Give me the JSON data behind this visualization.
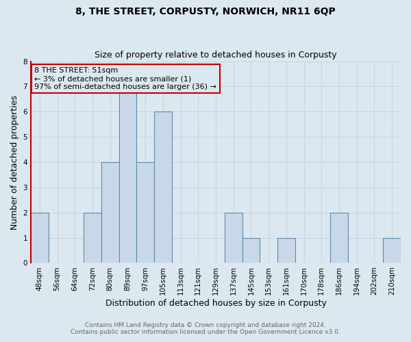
{
  "title": "8, THE STREET, CORPUSTY, NORWICH, NR11 6QP",
  "subtitle": "Size of property relative to detached houses in Corpusty",
  "xlabel": "Distribution of detached houses by size in Corpusty",
  "ylabel": "Number of detached properties",
  "footer_line1": "Contains HM Land Registry data © Crown copyright and database right 2024.",
  "footer_line2": "Contains public sector information licensed under the Open Government Licence v3.0.",
  "bin_labels": [
    "48sqm",
    "56sqm",
    "64sqm",
    "72sqm",
    "80sqm",
    "89sqm",
    "97sqm",
    "105sqm",
    "113sqm",
    "121sqm",
    "129sqm",
    "137sqm",
    "145sqm",
    "153sqm",
    "161sqm",
    "170sqm",
    "178sqm",
    "186sqm",
    "194sqm",
    "202sqm",
    "210sqm"
  ],
  "bar_values": [
    2,
    0,
    0,
    2,
    4,
    7,
    4,
    6,
    0,
    0,
    0,
    2,
    1,
    0,
    1,
    0,
    0,
    2,
    0,
    0,
    1
  ],
  "bar_color": "#c8d8e8",
  "bar_edge_color": "#5c8aaa",
  "annotation_box_edge_color": "#c00000",
  "annotation_text_line1": "8 THE STREET: 51sqm",
  "annotation_text_line2": "← 3% of detached houses are smaller (1)",
  "annotation_text_line3": "97% of semi-detached houses are larger (36) →",
  "ylim": [
    0,
    8
  ],
  "yticks": [
    0,
    1,
    2,
    3,
    4,
    5,
    6,
    7,
    8
  ],
  "grid_color": "#c8d4e0",
  "background_color": "#dce8f0",
  "highlight_left_edge_color": "#c00000",
  "title_fontsize": 10,
  "subtitle_fontsize": 9,
  "axis_label_fontsize": 9,
  "tick_fontsize": 7.5,
  "footer_fontsize": 6.5,
  "annotation_fontsize": 8
}
